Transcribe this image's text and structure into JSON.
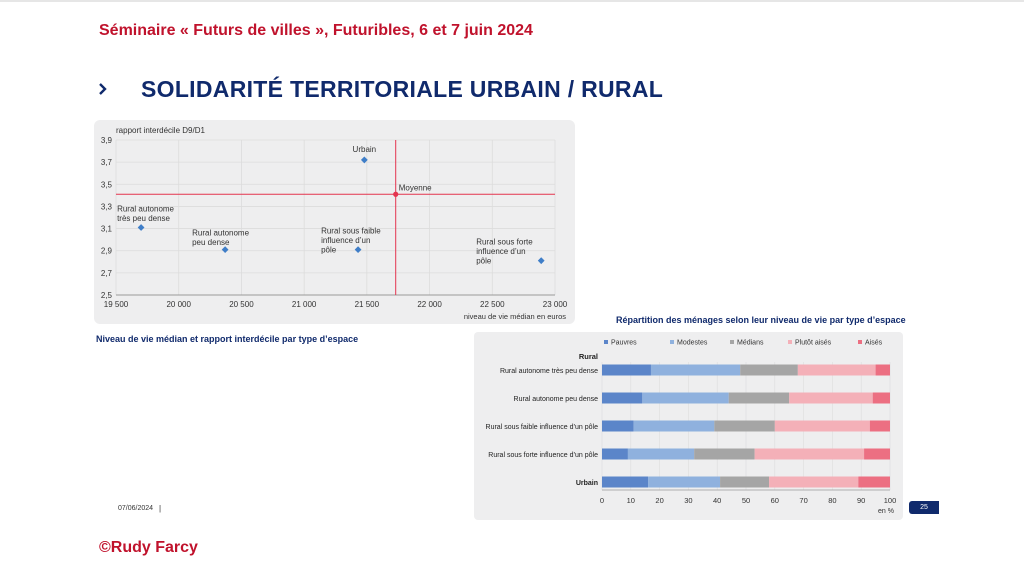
{
  "header": {
    "seminar": "Séminaire « Futurs de villes », Futuribles, 6 et 7 juin 2024",
    "title": "SOLIDARITÉ TERRITORIALE URBAIN / RURAL"
  },
  "scatter": {
    "caption": "Niveau de vie médian et rapport interdécile par type d’espace",
    "chart_data": {
      "type": "scatter",
      "ylabel": "rapport interdécile D9/D1",
      "xlabel": "niveau de vie médian en euros",
      "xlim": [
        19500,
        23000
      ],
      "ylim": [
        2.5,
        3.9
      ],
      "x_ticks": [
        "19 500",
        "20 000",
        "20 500",
        "21 000",
        "21 500",
        "22 000",
        "22 500",
        "23 000"
      ],
      "y_ticks": [
        "3,9",
        "3,7",
        "3,5",
        "3,3",
        "3,1",
        "2,9",
        "2,7",
        "2,5"
      ],
      "points": [
        {
          "label": "Urbain",
          "x": 21480,
          "y": 3.72
        },
        {
          "label": "Rural autonome très  peu dense",
          "x": 19700,
          "y": 3.11
        },
        {
          "label": "Rural autonome peu dense",
          "x": 20370,
          "y": 2.91
        },
        {
          "label": "Rural sous faible influence d’un pôle",
          "x": 21430,
          "y": 2.91
        },
        {
          "label": "Rural sous forte influence d’un pôle",
          "x": 22890,
          "y": 2.81
        }
      ],
      "reference": {
        "label": "Moyenne",
        "x": 21730,
        "y": 3.41
      },
      "color_points": "#3f7ec8",
      "color_reference": "#e4344f"
    }
  },
  "bars": {
    "caption": "Répartition des ménages selon leur niveau de vie par type d’espace",
    "chart_data": {
      "type": "bar",
      "orientation": "horizontal",
      "stacked": true,
      "group_label": "Rural",
      "unit": "en %",
      "xlim": [
        0,
        100
      ],
      "x_ticks": [
        "0",
        "10",
        "20",
        "30",
        "40",
        "50",
        "60",
        "70",
        "80",
        "90",
        "100"
      ],
      "categories": [
        "Rural autonome très peu dense",
        "Rural autonome peu dense",
        "Rural sous faible influence d’un pôle",
        "Rural sous forte influence d’un pôle",
        "Urbain"
      ],
      "series": [
        {
          "name": "Pauvres",
          "color": "#5b85c9",
          "values": [
            17,
            14,
            11,
            9,
            16
          ]
        },
        {
          "name": "Modestes",
          "color": "#8fb1de",
          "values": [
            31,
            30,
            28,
            23,
            25
          ]
        },
        {
          "name": "Médians",
          "color": "#a5a5a5",
          "values": [
            20,
            21,
            21,
            21,
            17
          ]
        },
        {
          "name": "Plutôt aisés",
          "color": "#f4b0b8",
          "values": [
            27,
            29,
            33,
            38,
            31
          ]
        },
        {
          "name": "Aisés",
          "color": "#ec6f82",
          "values": [
            5,
            6,
            7,
            9,
            11
          ]
        }
      ],
      "legend_position": "top"
    }
  },
  "footer": {
    "date": "07/06/2024",
    "separator": "|",
    "page": "25",
    "copyright": "©Rudy Farcy"
  }
}
